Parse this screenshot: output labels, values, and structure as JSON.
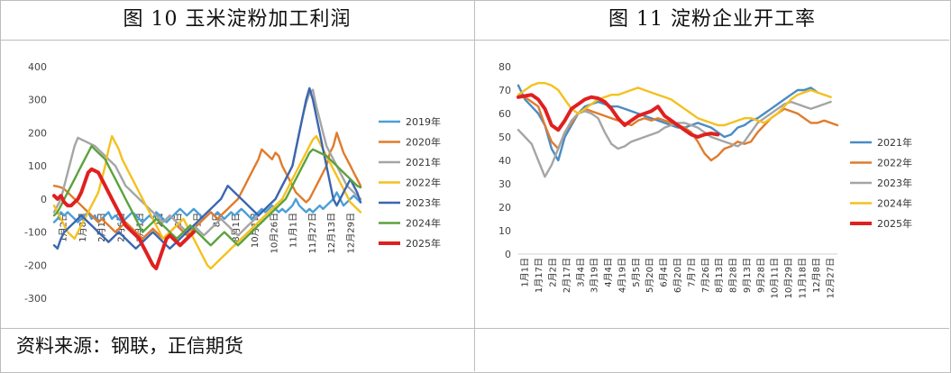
{
  "titles": {
    "left": "图 10 玉米淀粉加工利润",
    "right": "图 11 淀粉企业开工率"
  },
  "source_note": "资料来源：钢联，正信期货",
  "chart_data": [
    {
      "type": "line",
      "title": "图 10 玉米淀粉加工利润",
      "ylim": [
        -300,
        400
      ],
      "yticks": [
        400,
        300,
        200,
        100,
        0,
        -100,
        -200,
        -300
      ],
      "x_tick_labels": [
        "1月2日",
        "1月8日",
        "2月1日",
        "2月6日",
        "2月1日",
        "2日",
        "9日",
        "1日",
        "8日",
        "8月1日",
        "10月1日",
        "10月26日",
        "11月1日",
        "11月27日",
        "12月13日",
        "12月29日"
      ],
      "legend_position": "right",
      "series": [
        {
          "name": "2019年",
          "color": "#4a9fd8",
          "width": 2.4,
          "values": [
            -70,
            -60,
            -40,
            -50,
            -40,
            -50,
            -60,
            -70,
            -60,
            -50,
            -40,
            -60,
            -50,
            -70,
            -60,
            -50,
            -40,
            -60,
            -50,
            -60,
            -70,
            -60,
            -50,
            -40,
            -50,
            -60,
            -70,
            -60,
            -50,
            -60,
            -40,
            -50,
            -60,
            -70,
            -60,
            -50,
            -40,
            -30,
            -40,
            -50,
            -40,
            -30,
            -40,
            -50,
            -60,
            -50,
            -40,
            -50,
            -40,
            -50,
            -60,
            -50,
            -40,
            -50,
            -40,
            -30,
            -40,
            -50,
            -60,
            -50,
            -40,
            -30,
            -40,
            -30,
            -20,
            -30,
            -40,
            -30,
            -40,
            -30,
            -20,
            0,
            -20,
            -30,
            -40,
            -30,
            -40,
            -30,
            -20,
            -30,
            -20,
            -10,
            0,
            20,
            0,
            -20,
            -10,
            0,
            10,
            0,
            -10
          ]
        },
        {
          "name": "2020年",
          "color": "#e07b2c",
          "width": 2.4,
          "values": [
            40,
            38,
            35,
            30,
            20,
            10,
            0,
            -10,
            -20,
            -30,
            -40,
            -50,
            -60,
            -70,
            -60,
            -70,
            -80,
            -90,
            -100,
            -90,
            -80,
            -70,
            -80,
            -90,
            -100,
            -110,
            -120,
            -110,
            -100,
            -90,
            -100,
            -110,
            -120,
            -110,
            -100,
            -90,
            -80,
            -90,
            -100,
            -110,
            -100,
            -90,
            -80,
            -70,
            -60,
            -50,
            -40,
            -50,
            -60,
            -50,
            -40,
            -30,
            -20,
            -10,
            0,
            20,
            40,
            60,
            80,
            100,
            120,
            150,
            140,
            130,
            120,
            140,
            130,
            100,
            80,
            60,
            40,
            20,
            10,
            0,
            -10,
            0,
            20,
            40,
            60,
            80,
            100,
            140,
            160,
            200,
            170,
            140,
            120,
            100,
            80,
            60,
            40
          ]
        },
        {
          "name": "2021年",
          "color": "#a5a5a5",
          "width": 2.4,
          "values": [
            -40,
            -20,
            0,
            40,
            80,
            120,
            160,
            185,
            180,
            175,
            170,
            165,
            160,
            150,
            140,
            130,
            120,
            110,
            100,
            80,
            60,
            40,
            30,
            20,
            10,
            0,
            -10,
            -20,
            -30,
            -40,
            -50,
            -60,
            -70,
            -60,
            -50,
            -60,
            -70,
            -80,
            -90,
            -100,
            -90,
            -80,
            -90,
            -100,
            -110,
            -100,
            -90,
            -80,
            -70,
            -60,
            -70,
            -80,
            -90,
            -100,
            -110,
            -100,
            -90,
            -80,
            -70,
            -60,
            -50,
            -40,
            -30,
            -20,
            -10,
            0,
            20,
            40,
            60,
            80,
            100,
            150,
            200,
            250,
            290,
            320,
            330,
            280,
            240,
            200,
            160,
            140,
            120,
            100,
            80,
            60,
            40,
            30,
            20,
            10,
            0
          ]
        },
        {
          "name": "2022年",
          "color": "#f4c11f",
          "width": 2.4,
          "values": [
            -20,
            -40,
            -60,
            -80,
            -100,
            -110,
            -120,
            -100,
            -80,
            -60,
            -40,
            -20,
            0,
            20,
            60,
            100,
            150,
            190,
            170,
            150,
            120,
            100,
            80,
            60,
            40,
            20,
            0,
            -20,
            -40,
            -60,
            -80,
            -100,
            -120,
            -110,
            -100,
            -90,
            -80,
            -70,
            -60,
            -80,
            -100,
            -120,
            -140,
            -160,
            -180,
            -200,
            -210,
            -200,
            -190,
            -180,
            -170,
            -160,
            -150,
            -140,
            -130,
            -120,
            -110,
            -100,
            -90,
            -80,
            -70,
            -60,
            -50,
            -40,
            -30,
            -20,
            -10,
            0,
            20,
            40,
            60,
            80,
            100,
            120,
            140,
            160,
            180,
            190,
            170,
            150,
            130,
            110,
            90,
            70,
            50,
            30,
            10,
            -10,
            -20,
            -30,
            -40
          ]
        },
        {
          "name": "2023年",
          "color": "#3a66b0",
          "width": 2.4,
          "values": [
            -140,
            -150,
            -120,
            -100,
            -90,
            -80,
            -70,
            -60,
            -50,
            -60,
            -70,
            -80,
            -90,
            -100,
            -110,
            -120,
            -130,
            -120,
            -110,
            -100,
            -110,
            -120,
            -130,
            -140,
            -150,
            -140,
            -130,
            -120,
            -110,
            -100,
            -110,
            -120,
            -130,
            -140,
            -150,
            -140,
            -130,
            -120,
            -110,
            -100,
            -90,
            -80,
            -70,
            -60,
            -50,
            -40,
            -30,
            -20,
            -10,
            0,
            20,
            40,
            30,
            20,
            10,
            0,
            -10,
            -20,
            -30,
            -40,
            -50,
            -40,
            -30,
            -20,
            -10,
            0,
            20,
            40,
            60,
            80,
            100,
            150,
            200,
            250,
            300,
            335,
            300,
            250,
            200,
            150,
            100,
            50,
            0,
            -20,
            0,
            20,
            40,
            60,
            40,
            20,
            -10
          ]
        },
        {
          "name": "2024年",
          "color": "#5ba23c",
          "width": 2.4,
          "values": [
            -50,
            -40,
            -20,
            0,
            20,
            40,
            60,
            80,
            100,
            120,
            140,
            160,
            150,
            140,
            130,
            120,
            100,
            80,
            60,
            40,
            20,
            0,
            -20,
            -40,
            -60,
            -80,
            -100,
            -90,
            -80,
            -70,
            -60,
            -70,
            -80,
            -90,
            -100,
            -110,
            -120,
            -110,
            -100,
            -90,
            -80,
            -90,
            -100,
            -110,
            -120,
            -130,
            -140,
            -130,
            -120,
            -110,
            -100,
            -110,
            -120,
            -130,
            -140,
            -130,
            -120,
            -110,
            -100,
            -90,
            -80,
            -70,
            -60,
            -50,
            -40,
            -30,
            -20,
            -10,
            0,
            20,
            40,
            60,
            80,
            100,
            120,
            140,
            150,
            145,
            140,
            135,
            130,
            120,
            110,
            100,
            90,
            80,
            70,
            60,
            50,
            40,
            35
          ]
        },
        {
          "name": "2025年",
          "color": "#e02020",
          "width": 4,
          "values": [
            10,
            0,
            10,
            -10,
            -20,
            -20,
            -10,
            0,
            20,
            50,
            80,
            90,
            85,
            80,
            60,
            40,
            20,
            0,
            -20,
            -40,
            -60,
            -80,
            -90,
            -100,
            -110,
            -120,
            -140,
            -160,
            -180,
            -200,
            -210,
            -180,
            -150,
            -120,
            -110,
            -120,
            -130,
            -140,
            -130,
            -120,
            -110,
            -100
          ]
        }
      ]
    },
    {
      "type": "line",
      "title": "图 11 淀粉企业开工率",
      "ylim": [
        0,
        80
      ],
      "yticks": [
        80,
        70,
        60,
        50,
        40,
        30,
        20,
        10,
        0
      ],
      "x_tick_labels": [
        "1月1日",
        "1月17日",
        "2月2日",
        "2月17日",
        "3月4日",
        "3月19日",
        "4月4日",
        "4月19日",
        "5月5日",
        "5月20日",
        "6月4日",
        "6月20日",
        "7月7日",
        "7月26日",
        "8月13日",
        "8月28日",
        "9月13日",
        "9月28日",
        "10月11日",
        "10月29日",
        "11月18日",
        "12月8日",
        "12月27日"
      ],
      "legend_position": "right",
      "series": [
        {
          "name": "2021年",
          "color": "#4a8cc4",
          "width": 2.4,
          "values": [
            72,
            66,
            63,
            60,
            55,
            45,
            40,
            50,
            55,
            60,
            63,
            64,
            65,
            64,
            63,
            63,
            62,
            61,
            60,
            59,
            58,
            57,
            56,
            55,
            54,
            54,
            55,
            56,
            55,
            54,
            52,
            50,
            51,
            54,
            55,
            57,
            58,
            60,
            62,
            64,
            66,
            68,
            70,
            70,
            71,
            69
          ]
        },
        {
          "name": "2022年",
          "color": "#e07b2c",
          "width": 2.4,
          "values": [
            68,
            67,
            65,
            63,
            55,
            48,
            45,
            52,
            56,
            60,
            62,
            61,
            60,
            59,
            58,
            57,
            56,
            55,
            57,
            58,
            57,
            58,
            57,
            56,
            55,
            54,
            52,
            48,
            43,
            40,
            42,
            45,
            46,
            48,
            47,
            48,
            52,
            55,
            58,
            60,
            62,
            61,
            60,
            58,
            56,
            56,
            57,
            56,
            55
          ]
        },
        {
          "name": "2023年",
          "color": "#a5a5a5",
          "width": 2.4,
          "values": [
            53,
            50,
            47,
            40,
            33,
            38,
            45,
            52,
            57,
            60,
            61,
            60,
            58,
            52,
            47,
            45,
            46,
            48,
            49,
            50,
            51,
            52,
            54,
            55,
            56,
            56,
            55,
            54,
            52,
            50,
            49,
            48,
            47,
            46,
            48,
            52,
            56,
            58,
            60,
            62,
            64,
            65,
            64,
            63,
            62,
            63,
            64,
            65
          ]
        },
        {
          "name": "2024年",
          "color": "#f4c11f",
          "width": 2.4,
          "values": [
            68,
            70,
            72,
            73,
            73,
            72,
            70,
            66,
            62,
            60,
            62,
            64,
            66,
            67,
            68,
            68,
            69,
            70,
            71,
            70,
            69,
            68,
            67,
            66,
            64,
            62,
            60,
            58,
            57,
            56,
            55,
            55,
            56,
            57,
            58,
            58,
            57,
            56,
            58,
            60,
            63,
            66,
            68,
            69,
            70,
            69,
            68,
            67
          ]
        },
        {
          "name": "2025年",
          "color": "#e02020",
          "width": 4,
          "values": [
            67,
            67.5,
            68,
            66,
            62,
            55,
            53,
            57,
            62,
            64,
            66,
            67,
            66.5,
            65,
            62,
            58,
            55,
            57,
            59,
            60,
            61,
            63,
            59,
            57,
            55,
            53,
            51,
            50,
            51,
            51.5,
            51
          ]
        }
      ]
    }
  ]
}
